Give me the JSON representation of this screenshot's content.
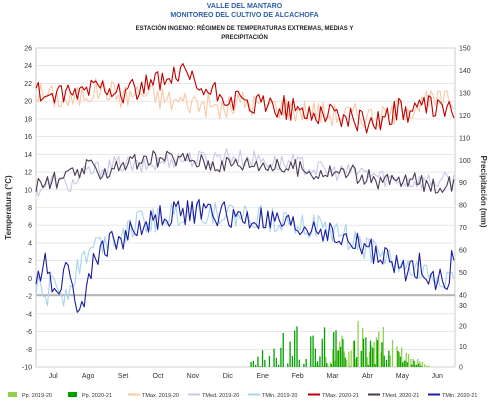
{
  "chart_data": {
    "type": "line",
    "title": "VALLE DEL MANTARO",
    "subtitle": "MONITOREO DEL CULTIVO DE ALCACHOFA",
    "station_line1": "ESTACIÓN INGENIO: RÉGIMEN DE TEMPERATURAS EXTREMAS, MEDIAS Y",
    "station_line2": "PRECIPITACIÓN",
    "ylabel": "Temperatura (°C)",
    "y2label": "Precipitación (mm)",
    "ylim": [
      -10,
      26
    ],
    "y2lim_top": [
      30,
      150
    ],
    "y2lim_bottom": [
      0,
      35
    ],
    "yticks": [
      "26",
      "24",
      "22",
      "20",
      "18",
      "16",
      "14",
      "12",
      "10",
      "8",
      "6",
      "4",
      "2",
      "0",
      "-2",
      "-4",
      "-6",
      "-8",
      "-10"
    ],
    "y2ticks_top": [
      "150",
      "140",
      "130",
      "120",
      "110",
      "100",
      "90",
      "80",
      "70",
      "60",
      "50",
      "40"
    ],
    "y2ticks_bottom": [
      "30",
      "20",
      "10",
      "0"
    ],
    "months": [
      "Jul",
      "Ago",
      "Set",
      "Oct",
      "Nov",
      "Dic",
      "Ene",
      "Feb",
      "Mar",
      "Abr",
      "May",
      "Jun"
    ],
    "series": [
      {
        "name": "Pp. 2019-20",
        "type": "bar",
        "color": "#92d050",
        "key_points": [
          [
            0,
            0
          ],
          [
            240,
            0
          ],
          [
            250,
            4
          ],
          [
            260,
            10
          ],
          [
            270,
            14
          ],
          [
            280,
            22
          ],
          [
            290,
            16
          ],
          [
            300,
            20
          ],
          [
            310,
            12
          ],
          [
            320,
            8
          ],
          [
            330,
            4
          ],
          [
            345,
            0
          ]
        ]
      },
      {
        "name": "Pp. 2020-21",
        "type": "bar",
        "color": "#00a000",
        "key_points": [
          [
            0,
            0
          ],
          [
            180,
            0
          ],
          [
            190,
            4
          ],
          [
            200,
            8
          ],
          [
            210,
            12
          ],
          [
            225,
            16
          ],
          [
            240,
            14
          ],
          [
            255,
            18
          ],
          [
            265,
            12
          ],
          [
            275,
            22
          ],
          [
            285,
            16
          ],
          [
            300,
            10
          ],
          [
            315,
            6
          ],
          [
            330,
            2
          ],
          [
            345,
            0
          ]
        ]
      },
      {
        "name": "TMax. 2019-20",
        "color": "#f8c8a8",
        "key_points": [
          [
            0,
            21
          ],
          [
            15,
            20.5
          ],
          [
            30,
            20
          ],
          [
            45,
            21
          ],
          [
            60,
            21.5
          ],
          [
            75,
            20.5
          ],
          [
            90,
            21
          ],
          [
            105,
            20.5
          ],
          [
            120,
            20
          ],
          [
            135,
            20
          ],
          [
            150,
            19.5
          ],
          [
            165,
            19
          ],
          [
            180,
            20
          ],
          [
            195,
            19.5
          ],
          [
            210,
            19.5
          ],
          [
            225,
            19
          ],
          [
            240,
            19
          ],
          [
            255,
            18.5
          ],
          [
            270,
            18.5
          ],
          [
            285,
            18.5
          ],
          [
            300,
            18
          ],
          [
            315,
            19
          ],
          [
            330,
            19.5
          ],
          [
            345,
            20
          ],
          [
            360,
            20
          ]
        ]
      },
      {
        "name": "TMed. 2019-20",
        "color": "#c8c8e8",
        "key_points": [
          [
            0,
            10
          ],
          [
            15,
            11
          ],
          [
            30,
            10.5
          ],
          [
            45,
            12
          ],
          [
            60,
            12.5
          ],
          [
            75,
            13
          ],
          [
            90,
            12.5
          ],
          [
            105,
            13
          ],
          [
            120,
            13.5
          ],
          [
            135,
            13.5
          ],
          [
            150,
            13.5
          ],
          [
            165,
            14
          ],
          [
            180,
            13.5
          ],
          [
            195,
            13.5
          ],
          [
            210,
            13
          ],
          [
            225,
            13
          ],
          [
            240,
            12.5
          ],
          [
            255,
            12
          ],
          [
            270,
            12
          ],
          [
            285,
            12
          ],
          [
            300,
            11.5
          ],
          [
            315,
            11
          ],
          [
            330,
            11
          ],
          [
            345,
            11
          ],
          [
            360,
            11
          ]
        ]
      },
      {
        "name": "TMin. 2019-20",
        "color": "#a8d4ee",
        "key_points": [
          [
            0,
            -1
          ],
          [
            10,
            -2
          ],
          [
            15,
            0
          ],
          [
            25,
            -2
          ],
          [
            35,
            1
          ],
          [
            45,
            3
          ],
          [
            55,
            4
          ],
          [
            70,
            5
          ],
          [
            85,
            6
          ],
          [
            100,
            6.5
          ],
          [
            115,
            7
          ],
          [
            130,
            7.5
          ],
          [
            145,
            7.5
          ],
          [
            160,
            7.5
          ],
          [
            175,
            7
          ],
          [
            190,
            7
          ],
          [
            205,
            6.5
          ],
          [
            220,
            7
          ],
          [
            235,
            6
          ],
          [
            250,
            5.5
          ],
          [
            265,
            5
          ],
          [
            280,
            4
          ],
          [
            295,
            3
          ],
          [
            310,
            2
          ],
          [
            325,
            1
          ],
          [
            340,
            0.5
          ],
          [
            360,
            0
          ]
        ]
      },
      {
        "name": "TMax. 2020-21",
        "color": "#c00000",
        "key_points": [
          [
            0,
            21
          ],
          [
            15,
            20.5
          ],
          [
            30,
            20.5
          ],
          [
            45,
            21.5
          ],
          [
            60,
            22
          ],
          [
            75,
            21
          ],
          [
            90,
            21.5
          ],
          [
            105,
            22
          ],
          [
            120,
            22.5
          ],
          [
            130,
            23
          ],
          [
            140,
            21.5
          ],
          [
            150,
            21
          ],
          [
            165,
            20.5
          ],
          [
            180,
            19.5
          ],
          [
            195,
            19.5
          ],
          [
            210,
            19.5
          ],
          [
            225,
            19
          ],
          [
            240,
            18.5
          ],
          [
            255,
            19
          ],
          [
            270,
            18
          ],
          [
            285,
            17.5
          ],
          [
            300,
            18
          ],
          [
            315,
            19
          ],
          [
            330,
            19
          ],
          [
            345,
            19.5
          ],
          [
            360,
            19
          ]
        ]
      },
      {
        "name": "TMed. 2020-21",
        "color": "#4a3a55",
        "key_points": [
          [
            0,
            10.5
          ],
          [
            15,
            11
          ],
          [
            30,
            11.5
          ],
          [
            45,
            12.5
          ],
          [
            60,
            12
          ],
          [
            75,
            13
          ],
          [
            90,
            13
          ],
          [
            105,
            13.5
          ],
          [
            120,
            13.5
          ],
          [
            135,
            13.5
          ],
          [
            150,
            13
          ],
          [
            165,
            13
          ],
          [
            180,
            13
          ],
          [
            195,
            13
          ],
          [
            210,
            12.5
          ],
          [
            225,
            12.5
          ],
          [
            240,
            12
          ],
          [
            255,
            12
          ],
          [
            270,
            12
          ],
          [
            285,
            11.5
          ],
          [
            300,
            11
          ],
          [
            315,
            11
          ],
          [
            330,
            11
          ],
          [
            345,
            10.5
          ],
          [
            360,
            10.5
          ]
        ]
      },
      {
        "name": "TMin. 2020-21",
        "color": "#1c1ca0",
        "key_points": [
          [
            0,
            -1
          ],
          [
            8,
            3
          ],
          [
            15,
            -2
          ],
          [
            22,
            0
          ],
          [
            30,
            1
          ],
          [
            38,
            -4
          ],
          [
            45,
            0
          ],
          [
            55,
            3
          ],
          [
            65,
            4
          ],
          [
            80,
            5
          ],
          [
            95,
            6
          ],
          [
            110,
            7
          ],
          [
            125,
            7.5
          ],
          [
            140,
            7.5
          ],
          [
            155,
            7.5
          ],
          [
            170,
            7
          ],
          [
            185,
            6.5
          ],
          [
            200,
            6.5
          ],
          [
            215,
            6
          ],
          [
            230,
            5.5
          ],
          [
            245,
            6
          ],
          [
            260,
            4.5
          ],
          [
            275,
            4
          ],
          [
            290,
            3.5
          ],
          [
            305,
            2
          ],
          [
            320,
            1
          ],
          [
            335,
            1.5
          ],
          [
            350,
            0
          ],
          [
            358,
            -1
          ],
          [
            362,
            2
          ]
        ]
      }
    ]
  }
}
